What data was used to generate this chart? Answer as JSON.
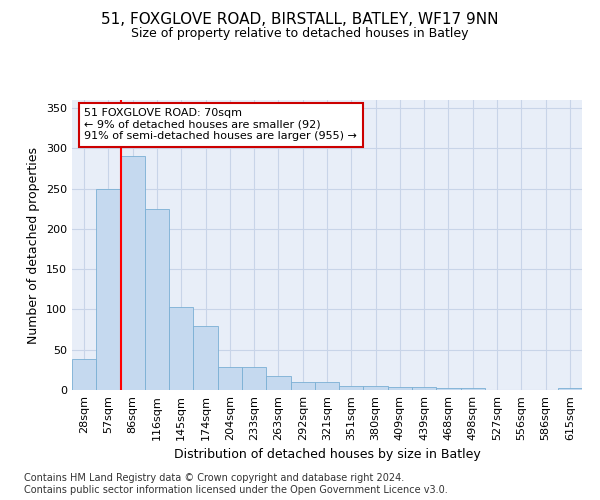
{
  "title": "51, FOXGLOVE ROAD, BIRSTALL, BATLEY, WF17 9NN",
  "subtitle": "Size of property relative to detached houses in Batley",
  "xlabel": "Distribution of detached houses by size in Batley",
  "ylabel": "Number of detached properties",
  "categories": [
    "28sqm",
    "57sqm",
    "86sqm",
    "116sqm",
    "145sqm",
    "174sqm",
    "204sqm",
    "233sqm",
    "263sqm",
    "292sqm",
    "321sqm",
    "351sqm",
    "380sqm",
    "409sqm",
    "439sqm",
    "468sqm",
    "498sqm",
    "527sqm",
    "556sqm",
    "586sqm",
    "615sqm"
  ],
  "values": [
    38,
    250,
    291,
    225,
    103,
    79,
    29,
    29,
    18,
    10,
    10,
    5,
    5,
    4,
    4,
    3,
    3,
    0,
    0,
    0,
    3
  ],
  "bar_color": "#c5d9ef",
  "bar_edge_color": "#7aafd4",
  "red_line_x": 1.5,
  "annotation_text": "51 FOXGLOVE ROAD: 70sqm\n← 9% of detached houses are smaller (92)\n91% of semi-detached houses are larger (955) →",
  "annotation_box_color": "#ffffff",
  "annotation_edge_color": "#cc0000",
  "grid_color": "#c8d4e8",
  "background_color": "#e8eef8",
  "footer_text": "Contains HM Land Registry data © Crown copyright and database right 2024.\nContains public sector information licensed under the Open Government Licence v3.0.",
  "ylim": [
    0,
    360
  ],
  "yticks": [
    0,
    50,
    100,
    150,
    200,
    250,
    300,
    350
  ],
  "title_fontsize": 11,
  "subtitle_fontsize": 9,
  "ylabel_fontsize": 9,
  "xlabel_fontsize": 9,
  "tick_fontsize": 8,
  "footer_fontsize": 7
}
